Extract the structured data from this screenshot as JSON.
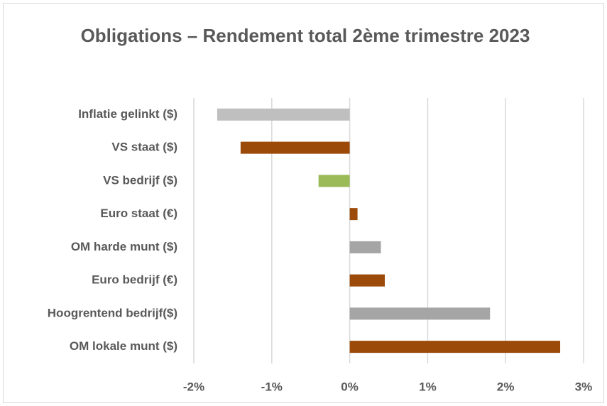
{
  "chart_data": {
    "type": "bar",
    "orientation": "horizontal",
    "title": "Obligations – Rendement total 2ème trimestre 2023",
    "categories": [
      "Inflatie gelinkt ($)",
      "VS staat ($)",
      "VS bedrijf ($)",
      "Euro staat (€)",
      "OM harde munt ($)",
      "Euro bedrijf (€)",
      "Hoogrentend bedrijf($)",
      "OM lokale munt ($)"
    ],
    "values": [
      -1.7,
      -1.4,
      -0.4,
      0.1,
      0.4,
      0.45,
      1.8,
      2.7
    ],
    "colors": [
      "#bfbfbf",
      "#9c4a0a",
      "#9bbb59",
      "#9c4a0a",
      "#a5a5a5",
      "#9c4a0a",
      "#a5a5a5",
      "#9c4a0a"
    ],
    "xlim": [
      -2,
      3
    ],
    "xticks": [
      {
        "value": -2,
        "label": "-2%"
      },
      {
        "value": -1,
        "label": "-1%"
      },
      {
        "value": 0,
        "label": "0%"
      },
      {
        "value": 1,
        "label": "1%"
      },
      {
        "value": 2,
        "label": "2%"
      },
      {
        "value": 3,
        "label": "3%"
      }
    ],
    "grid": true
  }
}
